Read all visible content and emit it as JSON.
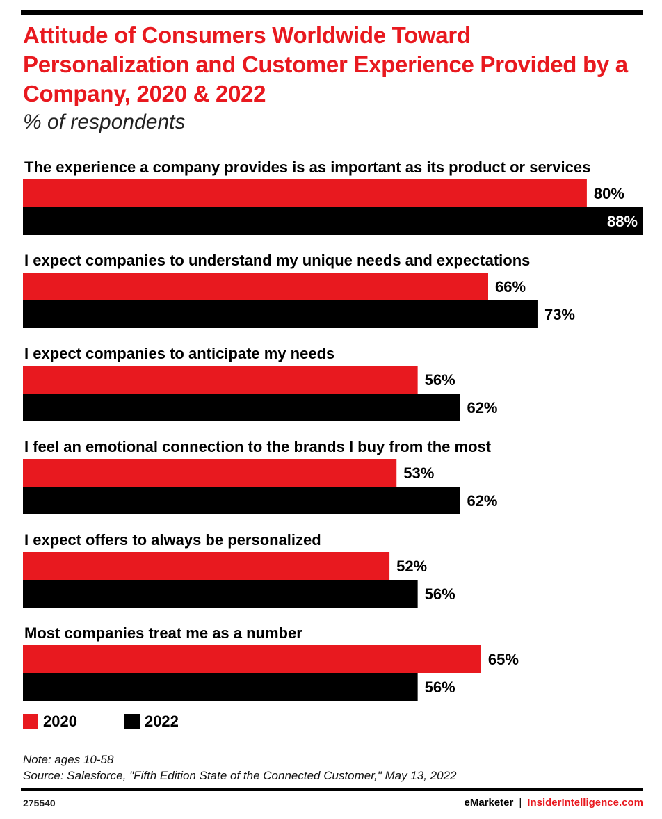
{
  "header": {
    "title": "Attitude of Consumers Worldwide Toward Personalization and Customer Experience Provided by a Company, 2020 & 2022",
    "subtitle": "% of respondents"
  },
  "colors": {
    "series_2020": "#e8191f",
    "series_2022": "#000000",
    "accent": "#e8191f"
  },
  "chart_data": {
    "type": "bar",
    "orientation": "horizontal",
    "categories": [
      "The experience a company provides is as important as its product or services",
      "I expect companies to understand my unique needs and expectations",
      "I expect companies to anticipate my needs",
      "I feel an emotional connection to the brands I buy from the most",
      "I expect offers to always be personalized",
      "Most companies treat me as a number"
    ],
    "series": [
      {
        "name": "2020",
        "values": [
          80,
          66,
          56,
          53,
          52,
          65
        ],
        "labels": [
          "80%",
          "66%",
          "56%",
          "53%",
          "52%",
          "65%"
        ]
      },
      {
        "name": "2022",
        "values": [
          88,
          73,
          62,
          62,
          56,
          56
        ],
        "labels": [
          "88%",
          "73%",
          "62%",
          "62%",
          "56%",
          "56%"
        ]
      }
    ],
    "xlim": [
      0,
      88
    ],
    "grid": false,
    "legend_position": "bottom-left"
  },
  "legend": {
    "items": [
      "2020",
      "2022"
    ]
  },
  "footer": {
    "note": "Note: ages 10-58",
    "source": "Source: Salesforce, \"Fifth Edition State of the Connected Customer,\" May 13, 2022",
    "chart_id": "275540",
    "brand_primary": "eMarketer",
    "brand_separator": "|",
    "brand_secondary": "InsiderIntelligence.com"
  }
}
